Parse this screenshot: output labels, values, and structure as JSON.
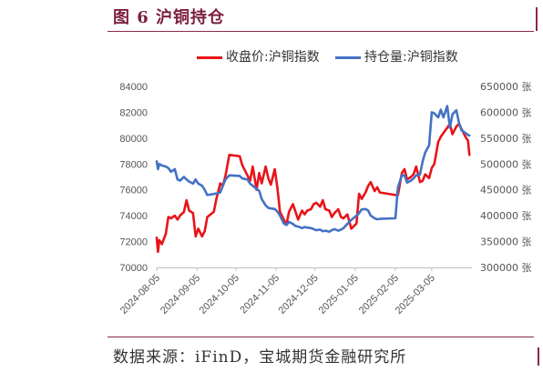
{
  "figure": {
    "title": "图 6 沪铜持仓",
    "source": "数据来源：iFinD，宝城期货金融研究所"
  },
  "chart_data": {
    "type": "line",
    "title": "",
    "x_axis": {
      "tick_labels": [
        "2024-08-05",
        "2024-09-05",
        "2024-10-05",
        "2024-11-05",
        "2024-12-05",
        "2025-01-05",
        "2025-02-05",
        "2025-03-05"
      ],
      "range": [
        "2024-08-05",
        "2025-04-05"
      ]
    },
    "y_left": {
      "ticks": [
        "84000",
        "82000",
        "80000",
        "78000",
        "76000",
        "74000",
        "72000",
        "70000"
      ],
      "range": [
        70000,
        84000
      ]
    },
    "y_right": {
      "ticks": [
        "650000 张",
        "600000 张",
        "550000 张",
        "500000 张",
        "450000 张",
        "400000 张",
        "350000 张",
        "300000 张"
      ],
      "range": [
        300000,
        650000
      ]
    },
    "grid": false,
    "legend_position": "top-center",
    "series": [
      {
        "name": "收盘价:沪铜指数",
        "color": "#e8141a",
        "axis": "left",
        "x": [
          "2024-08-05",
          "2024-08-06",
          "2024-08-07",
          "2024-08-09",
          "2024-08-12",
          "2024-08-14",
          "2024-08-16",
          "2024-08-19",
          "2024-08-21",
          "2024-08-23",
          "2024-08-26",
          "2024-08-28",
          "2024-08-30",
          "2024-09-02",
          "2024-09-04",
          "2024-09-06",
          "2024-09-09",
          "2024-09-11",
          "2024-09-13",
          "2024-09-18",
          "2024-09-20",
          "2024-09-23",
          "2024-09-25",
          "2024-09-27",
          "2024-09-30",
          "2024-10-08",
          "2024-10-10",
          "2024-10-14",
          "2024-10-16",
          "2024-10-18",
          "2024-10-21",
          "2024-10-23",
          "2024-10-25",
          "2024-10-28",
          "2024-10-30",
          "2024-11-01",
          "2024-11-04",
          "2024-11-06",
          "2024-11-08",
          "2024-11-11",
          "2024-11-13",
          "2024-11-15",
          "2024-11-18",
          "2024-11-20",
          "2024-11-22",
          "2024-11-25",
          "2024-11-27",
          "2024-11-29",
          "2024-12-02",
          "2024-12-04",
          "2024-12-06",
          "2024-12-09",
          "2024-12-11",
          "2024-12-13",
          "2024-12-16",
          "2024-12-18",
          "2024-12-20",
          "2024-12-23",
          "2024-12-25",
          "2024-12-27",
          "2024-12-30",
          "2025-01-02",
          "2025-01-06",
          "2025-01-08",
          "2025-01-10",
          "2025-01-13",
          "2025-01-15",
          "2025-01-17",
          "2025-01-20",
          "2025-01-22",
          "2025-01-24",
          "2025-02-05",
          "2025-02-07",
          "2025-02-10",
          "2025-02-12",
          "2025-02-14",
          "2025-02-17",
          "2025-02-19",
          "2025-02-21",
          "2025-02-24",
          "2025-02-26",
          "2025-02-28",
          "2025-03-03",
          "2025-03-05",
          "2025-03-07",
          "2025-03-10",
          "2025-03-12",
          "2025-03-14",
          "2025-03-17",
          "2025-03-19",
          "2025-03-21",
          "2025-03-24",
          "2025-03-26",
          "2025-03-28",
          "2025-03-31",
          "2025-04-02",
          "2025-04-03"
        ],
        "values": [
          72300,
          71200,
          72100,
          71800,
          72600,
          73900,
          73800,
          74000,
          73700,
          74000,
          74300,
          75200,
          74400,
          74200,
          72400,
          73000,
          72400,
          72800,
          73900,
          74300,
          75300,
          76500,
          76300,
          77100,
          78700,
          78600,
          77900,
          77100,
          76700,
          77800,
          76000,
          77300,
          76500,
          77800,
          76900,
          76400,
          77600,
          76200,
          74300,
          73700,
          73300,
          74300,
          74900,
          74300,
          73700,
          74400,
          74100,
          74400,
          74500,
          74900,
          75000,
          74700,
          75200,
          74500,
          74400,
          73900,
          74200,
          74500,
          73900,
          73800,
          74100,
          73000,
          73400,
          75700,
          75300,
          75800,
          76300,
          76600,
          75900,
          76200,
          75800,
          75600,
          75600,
          77300,
          77600,
          76800,
          77000,
          77200,
          77800,
          76600,
          76700,
          77200,
          76900,
          77700,
          78000,
          79700,
          80100,
          80400,
          80800,
          81100,
          80300,
          80900,
          81100,
          80700,
          80100,
          79800,
          78700
        ]
      },
      {
        "name": "持仓量:沪铜指数",
        "color": "#4472c4",
        "axis": "right",
        "x": [
          "2024-08-05",
          "2024-08-06",
          "2024-08-07",
          "2024-08-09",
          "2024-08-12",
          "2024-08-14",
          "2024-08-16",
          "2024-08-19",
          "2024-08-21",
          "2024-08-23",
          "2024-08-26",
          "2024-08-28",
          "2024-08-30",
          "2024-09-02",
          "2024-09-04",
          "2024-09-06",
          "2024-09-09",
          "2024-09-11",
          "2024-09-13",
          "2024-09-18",
          "2024-09-20",
          "2024-09-23",
          "2024-09-25",
          "2024-09-27",
          "2024-09-30",
          "2024-10-08",
          "2024-10-10",
          "2024-10-14",
          "2024-10-16",
          "2024-10-18",
          "2024-10-21",
          "2024-10-23",
          "2024-10-25",
          "2024-10-28",
          "2024-10-30",
          "2024-11-01",
          "2024-11-04",
          "2024-11-06",
          "2024-11-08",
          "2024-11-11",
          "2024-11-13",
          "2024-11-15",
          "2024-11-18",
          "2024-11-20",
          "2024-11-22",
          "2024-11-25",
          "2024-11-27",
          "2024-11-29",
          "2024-12-02",
          "2024-12-04",
          "2024-12-06",
          "2024-12-09",
          "2024-12-11",
          "2024-12-13",
          "2024-12-16",
          "2024-12-18",
          "2024-12-20",
          "2024-12-23",
          "2024-12-25",
          "2024-12-27",
          "2024-12-30",
          "2025-01-02",
          "2025-01-06",
          "2025-01-08",
          "2025-01-10",
          "2025-01-13",
          "2025-01-15",
          "2025-01-17",
          "2025-01-20",
          "2025-01-22",
          "2025-01-24",
          "2025-02-05",
          "2025-02-07",
          "2025-02-10",
          "2025-02-12",
          "2025-02-14",
          "2025-02-17",
          "2025-02-19",
          "2025-02-21",
          "2025-02-24",
          "2025-02-26",
          "2025-02-28",
          "2025-03-03",
          "2025-03-05",
          "2025-03-07",
          "2025-03-10",
          "2025-03-12",
          "2025-03-14",
          "2025-03-17",
          "2025-03-19",
          "2025-03-21",
          "2025-03-24",
          "2025-03-26",
          "2025-03-28",
          "2025-03-31",
          "2025-04-02",
          "2025-04-03"
        ],
        "values": [
          505000,
          490000,
          500000,
          497000,
          495000,
          492000,
          485000,
          490000,
          470000,
          468000,
          475000,
          470000,
          466000,
          462000,
          470000,
          462000,
          458000,
          450000,
          440000,
          442000,
          443000,
          445000,
          458000,
          470000,
          478000,
          477000,
          472000,
          470000,
          462000,
          458000,
          452000,
          448000,
          432000,
          420000,
          415000,
          414000,
          413000,
          408000,
          400000,
          385000,
          382000,
          388000,
          384000,
          380000,
          379000,
          376000,
          378000,
          377000,
          376000,
          374000,
          372000,
          373000,
          370000,
          371000,
          369000,
          372000,
          374000,
          371000,
          373000,
          376000,
          384000,
          392000,
          400000,
          405000,
          412000,
          413000,
          410000,
          400000,
          395000,
          393000,
          394000,
          395000,
          455000,
          478000,
          478000,
          464000,
          468000,
          472000,
          478000,
          480000,
          505000,
          522000,
          536000,
          600000,
          598000,
          590000,
          605000,
          590000,
          612000,
          570000,
          596000,
          604000,
          580000,
          565000,
          560000,
          556000,
          555000
        ]
      }
    ]
  }
}
